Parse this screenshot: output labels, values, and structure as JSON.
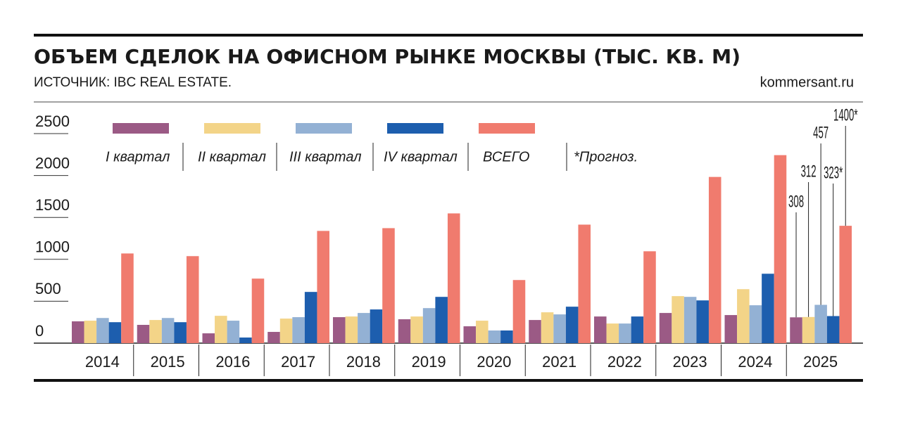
{
  "chart_data": {
    "type": "bar",
    "title": "ОБЪЕМ СДЕЛОК НА ОФИСНОМ РЫНКЕ МОСКВЫ (ТЫС. КВ. М)",
    "subtitle": "ИСТОЧНИК: IBC REAL ESTATE.",
    "site": "kommersant.ru",
    "note": "*Прогноз.",
    "categories": [
      "2014",
      "2015",
      "2016",
      "2017",
      "2018",
      "2019",
      "2020",
      "2021",
      "2022",
      "2023",
      "2024",
      "2025"
    ],
    "series": [
      {
        "name": "I квартал",
        "color": "#9b5a85",
        "values": [
          260,
          218,
          117,
          134,
          310,
          285,
          201,
          276,
          318,
          360,
          335,
          308
        ],
        "value_labels": [
          null,
          null,
          null,
          null,
          null,
          null,
          null,
          null,
          null,
          null,
          null,
          "308"
        ]
      },
      {
        "name": "II квартал",
        "color": "#f3d488",
        "values": [
          268,
          276,
          326,
          293,
          318,
          318,
          268,
          368,
          234,
          561,
          644,
          312
        ],
        "value_labels": [
          null,
          null,
          null,
          null,
          null,
          null,
          null,
          null,
          null,
          null,
          null,
          "312"
        ]
      },
      {
        "name": "III квартал",
        "color": "#93b1d4",
        "values": [
          300,
          300,
          268,
          310,
          360,
          418,
          151,
          343,
          234,
          552,
          452,
          457
        ],
        "value_labels": [
          null,
          null,
          null,
          null,
          null,
          null,
          null,
          null,
          null,
          null,
          null,
          "457"
        ]
      },
      {
        "name": "IV квартал",
        "color": "#1d5eae",
        "values": [
          250,
          250,
          67,
          611,
          402,
          552,
          151,
          435,
          318,
          510,
          828,
          323
        ],
        "value_labels": [
          null,
          null,
          null,
          null,
          null,
          null,
          null,
          null,
          null,
          null,
          null,
          "323*"
        ]
      },
      {
        "name": "ВСЕГО",
        "color": "#f07b6e",
        "values": [
          1070,
          1038,
          770,
          1339,
          1372,
          1548,
          753,
          1414,
          1096,
          1983,
          2243,
          1400
        ],
        "value_labels": [
          null,
          null,
          null,
          null,
          null,
          null,
          null,
          null,
          null,
          null,
          null,
          "1400*"
        ]
      }
    ],
    "ylim": [
      0,
      2500
    ],
    "yticks": [
      0,
      500,
      1000,
      1500,
      2000,
      2500
    ]
  }
}
